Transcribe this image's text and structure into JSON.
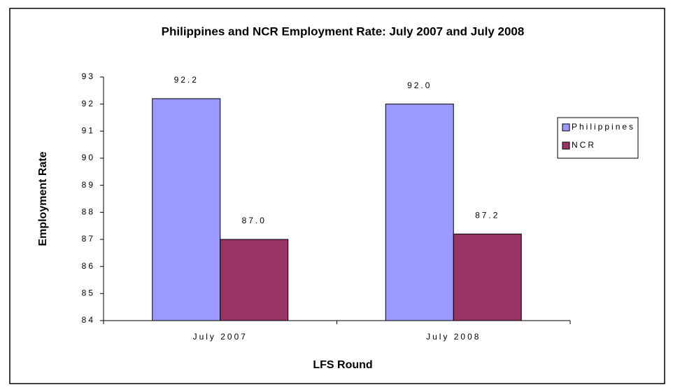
{
  "chart_data": {
    "type": "bar",
    "title": "Philippines and NCR Employment Rate: July 2007 and July 2008",
    "x_label": "LFS Round",
    "y_label": "Employment Rate",
    "categories": [
      "July 2007",
      "July 2008"
    ],
    "series": [
      {
        "name": "Philippines",
        "color": "#9999ff",
        "values": [
          92.2,
          92.0
        ],
        "value_labels": [
          "92.2",
          "92.0"
        ]
      },
      {
        "name": "NCR",
        "color": "#993366",
        "values": [
          87.0,
          87.2
        ],
        "value_labels": [
          "87.0",
          "87.2"
        ]
      }
    ],
    "ylim": [
      84,
      93
    ],
    "yticks": [
      84,
      85,
      86,
      87,
      88,
      89,
      90,
      91,
      92,
      93
    ],
    "legend": "right"
  }
}
